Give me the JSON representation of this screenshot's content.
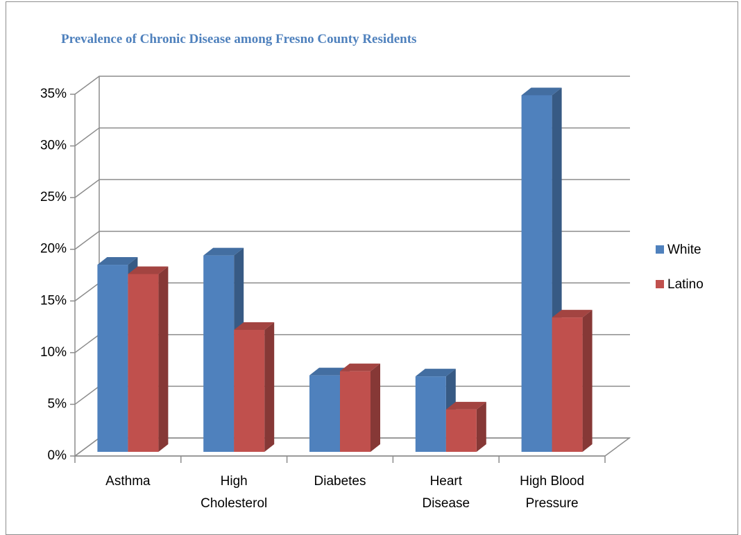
{
  "chart_data": {
    "type": "bar3d",
    "title": "Prevalence of Chronic Disease among Fresno County Residents",
    "categories": [
      "Asthma",
      "High Cholesterol",
      "Diabetes",
      "Heart Disease",
      "High Blood Pressure"
    ],
    "series": [
      {
        "name": "White",
        "color": "#4f81bd",
        "values": [
          18.1,
          19.0,
          7.4,
          7.3,
          34.5
        ]
      },
      {
        "name": "Latino",
        "color": "#c0504d",
        "values": [
          17.2,
          11.8,
          7.8,
          4.1,
          13.0
        ]
      }
    ],
    "ylim": [
      0,
      35
    ],
    "yticks": [
      {
        "value": 0,
        "label": "0%"
      },
      {
        "value": 5,
        "label": "5%"
      },
      {
        "value": 10,
        "label": "10%"
      },
      {
        "value": 15,
        "label": "15%"
      },
      {
        "value": 20,
        "label": "20%"
      },
      {
        "value": 25,
        "label": "25%"
      },
      {
        "value": 30,
        "label": "30%"
      },
      {
        "value": 35,
        "label": "35%"
      }
    ],
    "grid": true,
    "legend": "right"
  }
}
